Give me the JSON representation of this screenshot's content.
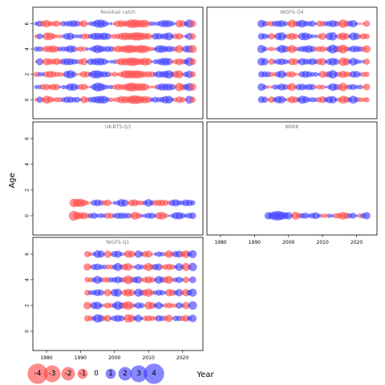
{
  "chart_data": {
    "type": "scatter",
    "encoding": "bubble",
    "xlabel": "Year",
    "ylabel": "Age",
    "xlim": [
      1976,
      2026
    ],
    "ylim": [
      -1.5,
      7.3
    ],
    "x_ticks": [
      1980,
      1990,
      2000,
      2010,
      2020
    ],
    "y_ticks": [
      0,
      2,
      4,
      6
    ],
    "colors": {
      "positive": "#3b3bff",
      "negative": "#ff4747"
    },
    "legend": {
      "position": "bottom-left",
      "values": [
        -4,
        -3,
        -2,
        -1,
        0,
        1,
        2,
        3,
        4
      ],
      "labels": [
        "-4",
        "-3",
        "-2",
        "-1",
        "0",
        "1",
        "2",
        "3",
        "4"
      ]
    },
    "panels": [
      {
        "title": "Residual catch",
        "years": [
          1977,
          2023
        ],
        "ages": [
          0,
          1,
          2,
          3,
          4,
          5,
          6
        ],
        "pattern": [
          [
            1977,
            0
          ],
          [
            1978,
            0.6
          ],
          [
            1980,
            -1
          ],
          [
            1983,
            -0.6
          ],
          [
            1987,
            1.2
          ],
          [
            1991,
            -0.8
          ],
          [
            1995,
            1.5
          ],
          [
            2001,
            -0.6
          ],
          [
            2005,
            -1.6
          ],
          [
            2009,
            -1.1
          ],
          [
            2013,
            0.8
          ],
          [
            2016,
            1.2
          ],
          [
            2019,
            -1.3
          ],
          [
            2022,
            1.4
          ],
          [
            2023,
            -1.0
          ]
        ]
      },
      {
        "title": "NIGFS-Q4",
        "years": [
          1992,
          2023
        ],
        "ages": [
          0,
          1,
          2,
          3,
          4,
          5,
          6
        ],
        "pattern": [
          [
            1992,
            1.2
          ],
          [
            1995,
            -0.5
          ],
          [
            1998,
            1.3
          ],
          [
            2001,
            -1.2
          ],
          [
            2004,
            1.0
          ],
          [
            2007,
            0.6
          ],
          [
            2010,
            -0.9
          ],
          [
            2013,
            1.6
          ],
          [
            2016,
            -1.6
          ],
          [
            2019,
            1.1
          ],
          [
            2023,
            -0.8
          ]
        ]
      },
      {
        "title": "UK-BTS-Q3",
        "years": [
          1988,
          2023
        ],
        "ages": [
          0,
          1
        ],
        "pattern": [
          [
            1988,
            -2.2
          ],
          [
            1991,
            -0.9
          ],
          [
            1994,
            0.9
          ],
          [
            1998,
            -0.6
          ],
          [
            2002,
            1.1
          ],
          [
            2006,
            -1.0
          ],
          [
            2010,
            0.8
          ],
          [
            2014,
            -1.1
          ],
          [
            2018,
            0.9
          ],
          [
            2023,
            0.6
          ]
        ]
      },
      {
        "title": "NIMIK",
        "years": [
          1994,
          2023
        ],
        "ages": [
          0
        ],
        "pattern": [
          [
            1994,
            1.3
          ],
          [
            1997,
            1.9
          ],
          [
            2000,
            1.2
          ],
          [
            2002,
            -1.2
          ],
          [
            2005,
            0.6
          ],
          [
            2008,
            0.8
          ],
          [
            2011,
            -0.6
          ],
          [
            2013,
            0.5
          ],
          [
            2016,
            -1.5
          ],
          [
            2018,
            0.3
          ],
          [
            2021,
            0.2
          ],
          [
            2023,
            0.9
          ]
        ]
      },
      {
        "title": "NIGFS-Q1",
        "years": [
          1992,
          2023
        ],
        "ages": [
          1,
          2,
          3,
          4,
          5,
          6
        ],
        "pattern": [
          [
            1992,
            -0.9
          ],
          [
            1995,
            1.3
          ],
          [
            1998,
            -0.8
          ],
          [
            2001,
            1.4
          ],
          [
            2004,
            -1.6
          ],
          [
            2007,
            1.1
          ],
          [
            2010,
            -1.3
          ],
          [
            2013,
            1.0
          ],
          [
            2016,
            -1.1
          ],
          [
            2019,
            1.0
          ],
          [
            2021,
            -1.2
          ],
          [
            2023,
            1.5
          ]
        ]
      }
    ]
  }
}
